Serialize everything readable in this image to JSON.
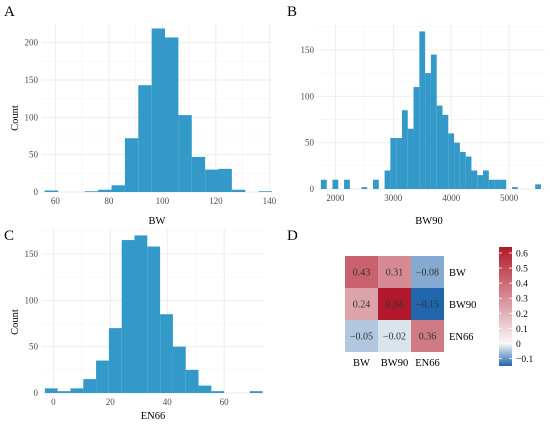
{
  "chart_data": [
    {
      "panel": "A",
      "type": "bar",
      "xlabel": "BW",
      "ylabel": "Count",
      "xlim": [
        55,
        141
      ],
      "ylim": [
        0,
        225
      ],
      "xticks": [
        60,
        80,
        100,
        120,
        140
      ],
      "yticks": [
        0,
        50,
        100,
        150,
        200
      ],
      "bin_width": 5,
      "bins": [
        {
          "x0": 56,
          "count": 2
        },
        {
          "x0": 61,
          "count": 0
        },
        {
          "x0": 66,
          "count": 0
        },
        {
          "x0": 71,
          "count": 1
        },
        {
          "x0": 76,
          "count": 3
        },
        {
          "x0": 81,
          "count": 9
        },
        {
          "x0": 86,
          "count": 72
        },
        {
          "x0": 91,
          "count": 143
        },
        {
          "x0": 96,
          "count": 219
        },
        {
          "x0": 101,
          "count": 207
        },
        {
          "x0": 106,
          "count": 103
        },
        {
          "x0": 111,
          "count": 47
        },
        {
          "x0": 116,
          "count": 30
        },
        {
          "x0": 121,
          "count": 31
        },
        {
          "x0": 126,
          "count": 3
        },
        {
          "x0": 131,
          "count": 0
        },
        {
          "x0": 136,
          "count": 1
        }
      ]
    },
    {
      "panel": "B",
      "type": "bar",
      "xlabel": "BW90",
      "ylabel": "",
      "xlim": [
        1700,
        5620
      ],
      "ylim": [
        0,
        178
      ],
      "xticks": [
        2000,
        3000,
        4000,
        5000
      ],
      "yticks": [
        0,
        50,
        100,
        150
      ],
      "bin_width": 100,
      "bins": [
        {
          "x0": 1750,
          "count": 10
        },
        {
          "x0": 1850,
          "count": 0
        },
        {
          "x0": 1950,
          "count": 10
        },
        {
          "x0": 2050,
          "count": 0
        },
        {
          "x0": 2150,
          "count": 10
        },
        {
          "x0": 2250,
          "count": 0
        },
        {
          "x0": 2350,
          "count": 0
        },
        {
          "x0": 2450,
          "count": 2
        },
        {
          "x0": 2550,
          "count": 0
        },
        {
          "x0": 2650,
          "count": 10
        },
        {
          "x0": 2750,
          "count": 0
        },
        {
          "x0": 2850,
          "count": 20
        },
        {
          "x0": 2950,
          "count": 55
        },
        {
          "x0": 3050,
          "count": 55
        },
        {
          "x0": 3150,
          "count": 85
        },
        {
          "x0": 3250,
          "count": 65
        },
        {
          "x0": 3350,
          "count": 110
        },
        {
          "x0": 3450,
          "count": 170
        },
        {
          "x0": 3550,
          "count": 125
        },
        {
          "x0": 3650,
          "count": 145
        },
        {
          "x0": 3750,
          "count": 90
        },
        {
          "x0": 3850,
          "count": 80
        },
        {
          "x0": 3950,
          "count": 60
        },
        {
          "x0": 4050,
          "count": 50
        },
        {
          "x0": 4150,
          "count": 40
        },
        {
          "x0": 4250,
          "count": 35
        },
        {
          "x0": 4350,
          "count": 20
        },
        {
          "x0": 4450,
          "count": 15
        },
        {
          "x0": 4550,
          "count": 20
        },
        {
          "x0": 4650,
          "count": 10
        },
        {
          "x0": 4750,
          "count": 10
        },
        {
          "x0": 4850,
          "count": 10
        },
        {
          "x0": 4950,
          "count": 0
        },
        {
          "x0": 5050,
          "count": 2
        },
        {
          "x0": 5150,
          "count": 0
        },
        {
          "x0": 5250,
          "count": 0
        },
        {
          "x0": 5350,
          "count": 0
        },
        {
          "x0": 5450,
          "count": 5
        }
      ]
    },
    {
      "panel": "C",
      "type": "bar",
      "xlabel": "EN66",
      "ylabel": "Count",
      "xlim": [
        -4,
        74
      ],
      "ylim": [
        0,
        178
      ],
      "xticks": [
        0,
        20,
        40,
        60
      ],
      "yticks": [
        0,
        50,
        100,
        150
      ],
      "bin_width": 4.5,
      "bins": [
        {
          "x0": -3,
          "count": 5
        },
        {
          "x0": 1.5,
          "count": 2
        },
        {
          "x0": 6,
          "count": 5
        },
        {
          "x0": 10.5,
          "count": 15
        },
        {
          "x0": 15,
          "count": 35
        },
        {
          "x0": 19.5,
          "count": 70
        },
        {
          "x0": 24,
          "count": 165
        },
        {
          "x0": 28.5,
          "count": 170
        },
        {
          "x0": 33,
          "count": 158
        },
        {
          "x0": 37.5,
          "count": 85
        },
        {
          "x0": 42,
          "count": 50
        },
        {
          "x0": 46.5,
          "count": 25
        },
        {
          "x0": 51,
          "count": 8
        },
        {
          "x0": 55.5,
          "count": 2
        },
        {
          "x0": 60,
          "count": 0
        },
        {
          "x0": 64.5,
          "count": 0
        },
        {
          "x0": 69,
          "count": 2
        }
      ]
    },
    {
      "panel": "D",
      "type": "heatmap",
      "rows": [
        "BW",
        "BW90",
        "EN66"
      ],
      "cols": [
        "BW",
        "BW90",
        "EN66"
      ],
      "cells": [
        {
          "row": 0,
          "col": 0,
          "value": 0.43,
          "label": "0.43"
        },
        {
          "row": 0,
          "col": 1,
          "value": 0.31,
          "label": "0.31"
        },
        {
          "row": 0,
          "col": 2,
          "value": -0.08,
          "label": "−0.08"
        },
        {
          "row": 1,
          "col": 0,
          "value": 0.24,
          "label": "0.24"
        },
        {
          "row": 1,
          "col": 1,
          "value": 0.64,
          "label": "0.64"
        },
        {
          "row": 1,
          "col": 2,
          "value": -0.15,
          "label": "−0.15"
        },
        {
          "row": 2,
          "col": 0,
          "value": -0.05,
          "label": "−0.05"
        },
        {
          "row": 2,
          "col": 1,
          "value": -0.02,
          "label": "−0.02"
        },
        {
          "row": 2,
          "col": 2,
          "value": 0.36,
          "label": "0.36"
        }
      ],
      "color_scale": {
        "min": -0.15,
        "max": 0.64,
        "low_color": "#2166ac",
        "mid_color": "#f7f7f7",
        "high_color": "#b2182b",
        "ticks": [
          {
            "value": 0.6,
            "label": "0.6"
          },
          {
            "value": 0.5,
            "label": "0.5"
          },
          {
            "value": 0.4,
            "label": "0.4"
          },
          {
            "value": 0.3,
            "label": "0.3"
          },
          {
            "value": 0.2,
            "label": "0.2"
          },
          {
            "value": 0.1,
            "label": "0.1"
          },
          {
            "value": 0.0,
            "label": "0"
          },
          {
            "value": -0.1,
            "label": "−0.1"
          }
        ]
      }
    }
  ],
  "panel_labels": [
    "A",
    "B",
    "C",
    "D"
  ],
  "colors": {
    "bar": "#3399c8",
    "grid": "#ebebeb",
    "tick_text": "#4d4d4d"
  }
}
